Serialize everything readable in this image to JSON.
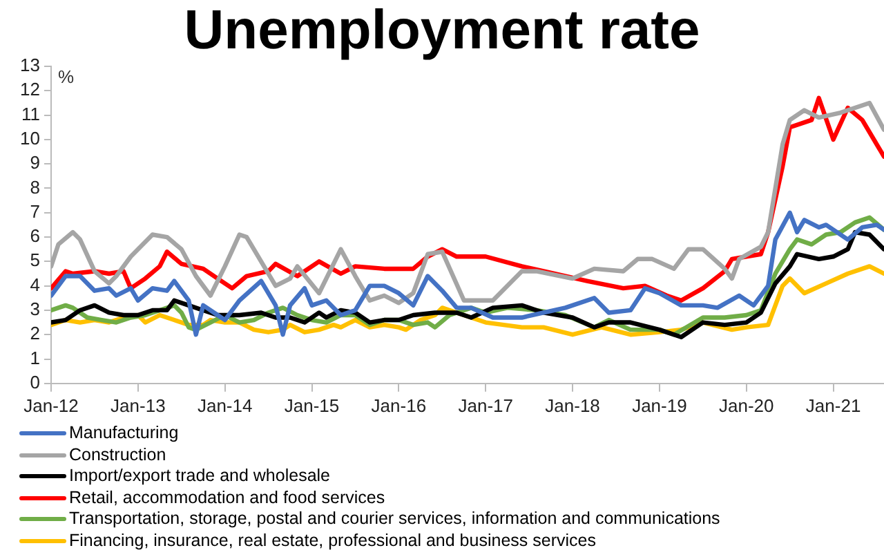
{
  "chart_data": {
    "type": "line",
    "title": "Unemployment rate",
    "ylabel": "%",
    "xlim": [
      "2012-01",
      "2021-08"
    ],
    "xticks": [
      {
        "value": "2012-01",
        "label": "Jan-12"
      },
      {
        "value": "2013-01",
        "label": "Jan-13"
      },
      {
        "value": "2014-01",
        "label": "Jan-14"
      },
      {
        "value": "2015-01",
        "label": "Jan-15"
      },
      {
        "value": "2016-01",
        "label": "Jan-16"
      },
      {
        "value": "2017-01",
        "label": "Jan-17"
      },
      {
        "value": "2018-01",
        "label": "Jan-18"
      },
      {
        "value": "2019-01",
        "label": "Jan-19"
      },
      {
        "value": "2020-01",
        "label": "Jan-20"
      },
      {
        "value": "2021-01",
        "label": "Jan-21"
      }
    ],
    "ylim": [
      0,
      13
    ],
    "yticks": [
      0,
      1,
      2,
      3,
      4,
      5,
      6,
      7,
      8,
      9,
      10,
      11,
      12,
      13
    ],
    "grid": false,
    "legend": "bottom",
    "marker": "none",
    "line_style": "solid",
    "series": [
      {
        "name": "Manufacturing",
        "color": "#4472c4",
        "x": [
          "2012-01",
          "2012-03",
          "2012-05",
          "2012-07",
          "2012-09",
          "2012-10",
          "2012-12",
          "2013-01",
          "2013-03",
          "2013-05",
          "2013-06",
          "2013-08",
          "2013-09",
          "2013-10",
          "2013-12",
          "2014-01",
          "2014-03",
          "2014-06",
          "2014-08",
          "2014-09",
          "2014-10",
          "2014-12",
          "2015-01",
          "2015-03",
          "2015-05",
          "2015-07",
          "2015-09",
          "2015-11",
          "2016-01",
          "2016-03",
          "2016-05",
          "2016-07",
          "2016-09",
          "2016-11",
          "2017-02",
          "2017-06",
          "2017-09",
          "2017-12",
          "2018-04",
          "2018-06",
          "2018-09",
          "2018-11",
          "2019-01",
          "2019-04",
          "2019-07",
          "2019-09",
          "2019-12",
          "2020-02",
          "2020-04",
          "2020-05",
          "2020-07",
          "2020-08",
          "2020-09",
          "2020-11",
          "2020-12",
          "2021-03",
          "2021-05",
          "2021-07",
          "2021-08"
        ],
        "values": [
          3.6,
          4.4,
          4.4,
          3.8,
          3.9,
          3.6,
          3.9,
          3.4,
          3.9,
          3.8,
          4.2,
          3.4,
          2.0,
          3.2,
          2.8,
          2.6,
          3.4,
          4.2,
          3.2,
          2.0,
          3.2,
          3.9,
          3.2,
          3.4,
          2.8,
          3.0,
          4.0,
          4.0,
          3.7,
          3.2,
          4.4,
          3.8,
          3.1,
          3.1,
          2.7,
          2.7,
          2.9,
          3.1,
          3.5,
          2.9,
          3.0,
          3.9,
          3.7,
          3.2,
          3.2,
          3.1,
          3.6,
          3.2,
          4.0,
          5.9,
          7.0,
          6.2,
          6.7,
          6.4,
          6.5,
          5.9,
          6.4,
          6.5,
          6.3
        ]
      },
      {
        "name": "Construction",
        "color": "#a5a5a5",
        "x": [
          "2012-01",
          "2012-02",
          "2012-04",
          "2012-05",
          "2012-07",
          "2012-09",
          "2012-10",
          "2012-12",
          "2013-03",
          "2013-05",
          "2013-07",
          "2013-09",
          "2013-11",
          "2014-01",
          "2014-03",
          "2014-04",
          "2014-06",
          "2014-08",
          "2014-10",
          "2014-11",
          "2015-02",
          "2015-05",
          "2015-07",
          "2015-09",
          "2015-11",
          "2016-01",
          "2016-03",
          "2016-05",
          "2016-07",
          "2016-10",
          "2017-02",
          "2017-06",
          "2017-08",
          "2018-01",
          "2018-04",
          "2018-08",
          "2018-10",
          "2018-12",
          "2019-03",
          "2019-05",
          "2019-07",
          "2019-10",
          "2019-11",
          "2019-12",
          "2020-03",
          "2020-04",
          "2020-06",
          "2020-07",
          "2020-09",
          "2020-11",
          "2021-02",
          "2021-06",
          "2021-08"
        ],
        "values": [
          4.8,
          5.7,
          6.2,
          5.9,
          4.6,
          4.1,
          4.4,
          5.2,
          6.1,
          6.0,
          5.5,
          4.4,
          3.6,
          4.8,
          6.1,
          6.0,
          5.0,
          4.0,
          4.3,
          4.8,
          3.7,
          5.5,
          4.4,
          3.4,
          3.6,
          3.3,
          3.7,
          5.3,
          5.4,
          3.4,
          3.4,
          4.6,
          4.6,
          4.3,
          4.7,
          4.6,
          5.1,
          5.1,
          4.7,
          5.5,
          5.5,
          4.7,
          4.3,
          5.1,
          5.6,
          6.2,
          9.8,
          10.8,
          11.2,
          10.9,
          11.1,
          11.5,
          10.4
        ]
      },
      {
        "name": "Import/export trade and wholesale",
        "color": "#000000",
        "x": [
          "2012-01",
          "2012-03",
          "2012-05",
          "2012-07",
          "2012-09",
          "2012-11",
          "2013-01",
          "2013-03",
          "2013-05",
          "2013-06",
          "2013-08",
          "2013-10",
          "2013-12",
          "2014-03",
          "2014-06",
          "2014-08",
          "2014-10",
          "2014-12",
          "2015-02",
          "2015-03",
          "2015-05",
          "2015-07",
          "2015-09",
          "2015-11",
          "2016-01",
          "2016-03",
          "2016-06",
          "2016-09",
          "2016-11",
          "2017-02",
          "2017-06",
          "2017-09",
          "2018-01",
          "2018-04",
          "2018-06",
          "2018-09",
          "2019-01",
          "2019-04",
          "2019-07",
          "2019-10",
          "2020-01",
          "2020-03",
          "2020-05",
          "2020-07",
          "2020-08",
          "2020-11",
          "2021-01",
          "2021-03",
          "2021-04",
          "2021-06",
          "2021-08"
        ],
        "values": [
          2.5,
          2.6,
          3.0,
          3.2,
          2.9,
          2.8,
          2.8,
          3.0,
          3.0,
          3.4,
          3.2,
          3.0,
          2.8,
          2.8,
          2.9,
          2.7,
          2.7,
          2.5,
          2.9,
          2.7,
          3.0,
          2.9,
          2.5,
          2.6,
          2.6,
          2.8,
          2.9,
          2.9,
          2.7,
          3.1,
          3.2,
          2.9,
          2.7,
          2.3,
          2.5,
          2.5,
          2.2,
          1.9,
          2.5,
          2.4,
          2.5,
          2.9,
          4.1,
          4.8,
          5.3,
          5.1,
          5.2,
          5.5,
          6.2,
          6.1,
          5.5
        ]
      },
      {
        "name": "Retail, accommodation and food services",
        "color": "#ff0000",
        "x": [
          "2012-01",
          "2012-03",
          "2012-04",
          "2012-07",
          "2012-09",
          "2012-11",
          "2012-12",
          "2013-02",
          "2013-04",
          "2013-05",
          "2013-07",
          "2013-10",
          "2013-12",
          "2014-02",
          "2014-04",
          "2014-07",
          "2014-08",
          "2014-11",
          "2015-02",
          "2015-05",
          "2015-07",
          "2015-11",
          "2016-03",
          "2016-05",
          "2016-07",
          "2016-09",
          "2017-01",
          "2017-06",
          "2017-09",
          "2018-03",
          "2018-08",
          "2018-11",
          "2019-02",
          "2019-04",
          "2019-07",
          "2019-10",
          "2019-11",
          "2020-03",
          "2020-04",
          "2020-06",
          "2020-07",
          "2020-10",
          "2020-11",
          "2021-01",
          "2021-03",
          "2021-05",
          "2021-08"
        ],
        "values": [
          3.9,
          4.6,
          4.5,
          4.6,
          4.5,
          4.6,
          3.9,
          4.3,
          4.8,
          5.4,
          4.9,
          4.7,
          4.3,
          3.9,
          4.4,
          4.6,
          4.9,
          4.4,
          5.0,
          4.5,
          4.8,
          4.7,
          4.7,
          5.2,
          5.5,
          5.2,
          5.2,
          4.8,
          4.6,
          4.2,
          3.9,
          4.0,
          3.6,
          3.4,
          3.9,
          4.6,
          5.1,
          5.3,
          6.2,
          8.9,
          10.5,
          10.8,
          11.7,
          10.0,
          11.3,
          10.8,
          9.3
        ]
      },
      {
        "name": "Transportation, storage, postal and courier services, information and communications",
        "color": "#70ad47",
        "x": [
          "2012-01",
          "2012-03",
          "2012-04",
          "2012-06",
          "2012-08",
          "2012-10",
          "2012-12",
          "2013-02",
          "2013-04",
          "2013-06",
          "2013-07",
          "2013-08",
          "2013-09",
          "2013-11",
          "2014-01",
          "2014-03",
          "2014-05",
          "2014-07",
          "2014-09",
          "2014-11",
          "2015-01",
          "2015-03",
          "2015-05",
          "2015-07",
          "2015-09",
          "2015-11",
          "2016-01",
          "2016-03",
          "2016-05",
          "2016-06",
          "2016-08",
          "2016-11",
          "2017-01",
          "2017-04",
          "2017-08",
          "2017-12",
          "2018-04",
          "2018-06",
          "2018-09",
          "2019-01",
          "2019-03",
          "2019-07",
          "2019-10",
          "2020-01",
          "2020-03",
          "2020-05",
          "2020-07",
          "2020-08",
          "2020-10",
          "2020-12",
          "2021-02",
          "2021-04",
          "2021-06",
          "2021-08"
        ],
        "values": [
          3.0,
          3.2,
          3.1,
          2.7,
          2.6,
          2.5,
          2.7,
          2.8,
          3.0,
          3.2,
          2.9,
          2.3,
          2.2,
          2.5,
          2.8,
          2.5,
          2.6,
          2.9,
          3.1,
          2.8,
          2.6,
          2.5,
          2.8,
          2.8,
          2.4,
          2.6,
          2.6,
          2.4,
          2.5,
          2.3,
          2.8,
          3.1,
          2.9,
          3.1,
          3.0,
          2.8,
          2.3,
          2.6,
          2.2,
          2.2,
          2.0,
          2.7,
          2.7,
          2.8,
          3.0,
          4.5,
          5.5,
          5.9,
          5.7,
          6.1,
          6.2,
          6.6,
          6.8,
          6.3
        ]
      },
      {
        "name": "Financing, insurance, real estate, professional and business services",
        "color": "#ffc000",
        "x": [
          "2012-01",
          "2012-03",
          "2012-05",
          "2012-07",
          "2012-09",
          "2012-11",
          "2013-01",
          "2013-02",
          "2013-04",
          "2013-06",
          "2013-08",
          "2013-10",
          "2013-11",
          "2014-01",
          "2014-03",
          "2014-05",
          "2014-07",
          "2014-09",
          "2014-10",
          "2014-12",
          "2015-02",
          "2015-04",
          "2015-05",
          "2015-07",
          "2015-09",
          "2015-11",
          "2016-01",
          "2016-02",
          "2016-04",
          "2016-06",
          "2016-07",
          "2016-10",
          "2017-01",
          "2017-06",
          "2017-09",
          "2018-01",
          "2018-05",
          "2018-09",
          "2019-01",
          "2019-04",
          "2019-07",
          "2019-11",
          "2020-01",
          "2020-04",
          "2020-06",
          "2020-07",
          "2020-09",
          "2020-12",
          "2021-03",
          "2021-06",
          "2021-08"
        ],
        "values": [
          2.4,
          2.6,
          2.5,
          2.6,
          2.5,
          2.7,
          2.8,
          2.5,
          2.8,
          2.6,
          2.4,
          2.4,
          2.6,
          2.5,
          2.5,
          2.2,
          2.1,
          2.2,
          2.4,
          2.1,
          2.2,
          2.4,
          2.3,
          2.6,
          2.3,
          2.4,
          2.3,
          2.2,
          2.6,
          2.8,
          3.1,
          2.8,
          2.5,
          2.3,
          2.3,
          2.0,
          2.3,
          2.0,
          2.1,
          2.2,
          2.5,
          2.2,
          2.3,
          2.4,
          4.0,
          4.3,
          3.7,
          4.1,
          4.5,
          4.8,
          4.5
        ]
      }
    ]
  }
}
